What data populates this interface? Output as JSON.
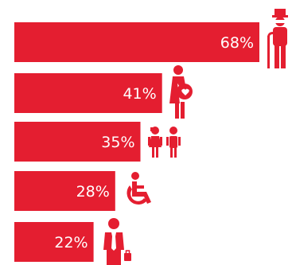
{
  "chart_data": {
    "type": "bar",
    "orientation": "horizontal",
    "title": "",
    "xlabel": "",
    "ylabel": "",
    "xlim": [
      0,
      68
    ],
    "grid": false,
    "legend": "none",
    "categories": [
      "elderly",
      "pregnant woman",
      "children",
      "wheelchair user",
      "businessman"
    ],
    "icons": [
      "elderly-person-icon",
      "pregnant-woman-icon",
      "children-icon",
      "wheelchair-icon",
      "businessman-icon"
    ],
    "values": [
      68,
      41,
      35,
      28,
      22
    ],
    "data_labels": [
      "68%",
      "41%",
      "35%",
      "28%",
      "22%"
    ],
    "colors": {
      "bar": "#e41e30",
      "icon": "#e41e30",
      "label_text": "#ffffff",
      "icon_detail": "#ffffff"
    }
  }
}
